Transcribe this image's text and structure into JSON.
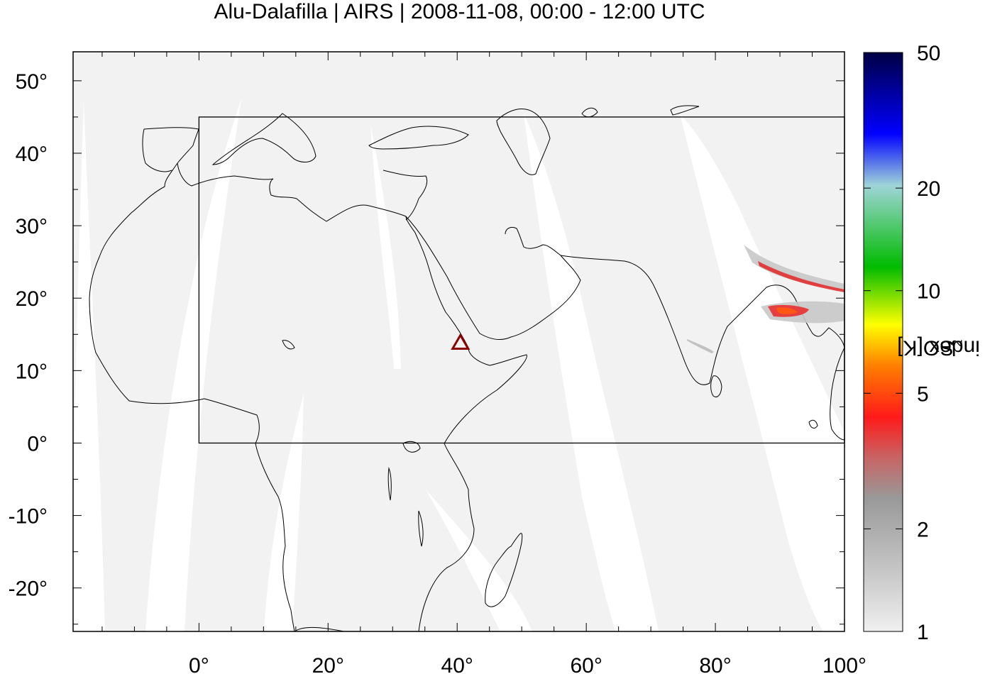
{
  "title": "Alu-Dalafilla | AIRS | 2008-11-08, 00:00 - 12:00 UTC",
  "map": {
    "lon_range": [
      -19.5,
      100
    ],
    "lat_range": [
      -26,
      54
    ],
    "x_ticks": [
      "0°",
      "20°",
      "40°",
      "60°",
      "80°",
      "100°"
    ],
    "y_ticks": [
      "50°",
      "40°",
      "30°",
      "20°",
      "10°",
      "0°",
      "-10°",
      "-20°"
    ],
    "region_box": {
      "lon": [
        0,
        100
      ],
      "lat": [
        0,
        45
      ]
    },
    "volcano": {
      "name": "Alu-Dalafilla",
      "lon": 40.5,
      "lat": 13.8,
      "marker": "triangle",
      "color": "#8b0000"
    },
    "background_color": "#f2f2f2",
    "swath_gap_color": "#ffffff"
  },
  "colorbar": {
    "label_main": "SO",
    "label_sub": "2",
    "label_rest": " index [K]",
    "scale": "log",
    "ticks": [
      "1",
      "2",
      "5",
      "10",
      "20",
      "50"
    ],
    "colors": [
      "#f0f0f0",
      "#999999",
      "#ff1a1a",
      "#ff8000",
      "#ffff00",
      "#00bb00",
      "#9fd5d8",
      "#0000ff",
      "#000044"
    ]
  }
}
